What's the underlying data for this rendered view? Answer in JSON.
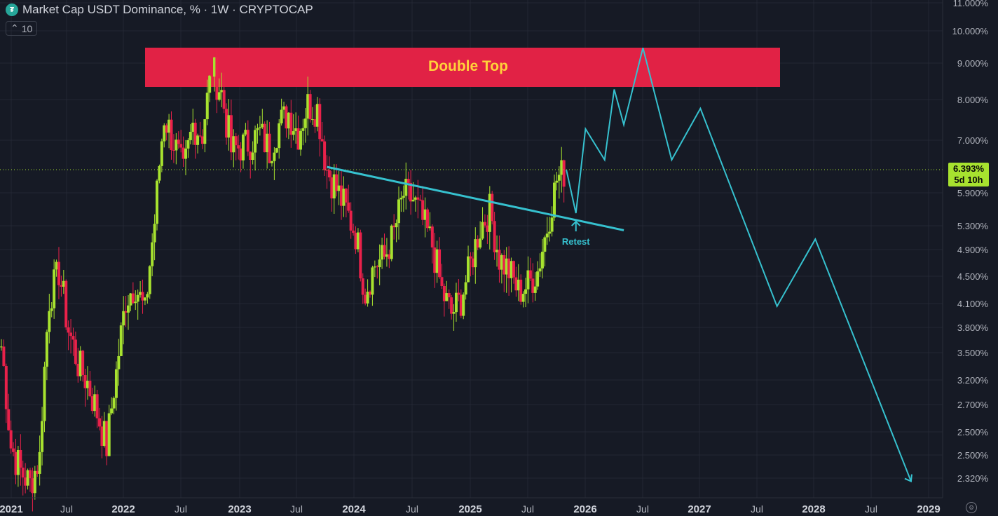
{
  "header": {
    "logo_icon": "ust-logo-icon",
    "title": "Market Cap USDT Dominance, % · 1W · CRYPTOCAP",
    "indicator_value": "10"
  },
  "price_tag": {
    "value": "6.393%",
    "countdown": "5d 10h"
  },
  "chart_data": {
    "type": "candlestick",
    "colors": {
      "up": "#a7e22f",
      "down": "#e9214a",
      "background": "#161a25",
      "grid": "#262a36",
      "drawing": "#36c1cf",
      "zone": "#ec2347"
    },
    "y_ticks": [
      "11.000%",
      "10.000%",
      "9.000%",
      "8.000%",
      "7.000%",
      "6.393%",
      "5.900%",
      "5.300%",
      "4.900%",
      "4.500%",
      "4.100%",
      "3.800%",
      "3.500%",
      "3.200%",
      "2.700%",
      "2.500%",
      "2.500%",
      "2.320%"
    ],
    "x_ticks": [
      "2021",
      "Jul",
      "2022",
      "Jul",
      "2023",
      "Jul",
      "2024",
      "Jul",
      "2025",
      "Jul",
      "2026",
      "Jul",
      "2027",
      "Jul",
      "2028",
      "Jul",
      "2029"
    ],
    "x_range": [
      "2021-01",
      "2029-02"
    ],
    "y_range": [
      2.2,
      11.2
    ],
    "close_series": [
      {
        "x": "2021-01",
        "y": 3.6
      },
      {
        "x": "2021-02",
        "y": 2.6
      },
      {
        "x": "2021-03",
        "y": 2.4
      },
      {
        "x": "2021-04",
        "y": 2.3
      },
      {
        "x": "2021-05",
        "y": 2.5
      },
      {
        "x": "2021-06",
        "y": 4.2
      },
      {
        "x": "2021-07",
        "y": 4.6
      },
      {
        "x": "2021-08",
        "y": 3.8
      },
      {
        "x": "2021-09",
        "y": 3.4
      },
      {
        "x": "2021-10",
        "y": 3.2
      },
      {
        "x": "2021-11",
        "y": 2.9
      },
      {
        "x": "2021-12",
        "y": 2.6
      },
      {
        "x": "2022-01",
        "y": 3.3
      },
      {
        "x": "2022-02",
        "y": 4.2
      },
      {
        "x": "2022-03",
        "y": 4.4
      },
      {
        "x": "2022-04",
        "y": 4.0
      },
      {
        "x": "2022-05",
        "y": 5.4
      },
      {
        "x": "2022-06",
        "y": 7.6
      },
      {
        "x": "2022-07",
        "y": 7.0
      },
      {
        "x": "2022-08",
        "y": 6.3
      },
      {
        "x": "2022-09",
        "y": 7.4
      },
      {
        "x": "2022-10",
        "y": 7.2
      },
      {
        "x": "2022-11",
        "y": 8.9
      },
      {
        "x": "2022-12",
        "y": 8.2
      },
      {
        "x": "2023-01",
        "y": 6.8
      },
      {
        "x": "2023-02",
        "y": 6.9
      },
      {
        "x": "2023-03",
        "y": 7.0
      },
      {
        "x": "2023-04",
        "y": 7.2
      },
      {
        "x": "2023-05",
        "y": 6.8
      },
      {
        "x": "2023-06",
        "y": 7.4
      },
      {
        "x": "2023-07",
        "y": 7.7
      },
      {
        "x": "2023-08",
        "y": 7.2
      },
      {
        "x": "2023-09",
        "y": 7.9
      },
      {
        "x": "2023-10",
        "y": 7.8
      },
      {
        "x": "2023-11",
        "y": 6.4
      },
      {
        "x": "2023-12",
        "y": 6.0
      },
      {
        "x": "2024-01",
        "y": 5.6
      },
      {
        "x": "2024-02",
        "y": 5.2
      },
      {
        "x": "2024-03",
        "y": 4.3
      },
      {
        "x": "2024-04",
        "y": 4.7
      },
      {
        "x": "2024-05",
        "y": 4.8
      },
      {
        "x": "2024-06",
        "y": 5.2
      },
      {
        "x": "2024-07",
        "y": 5.9
      },
      {
        "x": "2024-08",
        "y": 5.8
      },
      {
        "x": "2024-09",
        "y": 5.4
      },
      {
        "x": "2024-10",
        "y": 5.0
      },
      {
        "x": "2024-11",
        "y": 4.3
      },
      {
        "x": "2024-12",
        "y": 4.0
      },
      {
        "x": "2025-01",
        "y": 4.2
      },
      {
        "x": "2025-02",
        "y": 4.7
      },
      {
        "x": "2025-03",
        "y": 5.3
      },
      {
        "x": "2025-04",
        "y": 5.6
      },
      {
        "x": "2025-05",
        "y": 4.8
      },
      {
        "x": "2025-06",
        "y": 4.6
      },
      {
        "x": "2025-07",
        "y": 4.3
      },
      {
        "x": "2025-08",
        "y": 4.4
      },
      {
        "x": "2025-09",
        "y": 4.6
      },
      {
        "x": "2025-10",
        "y": 5.3
      },
      {
        "x": "2025-11",
        "y": 6.2
      },
      {
        "x": "2025-12",
        "y": 6.39
      }
    ],
    "annotations": {
      "zone_label": "Double Top",
      "retest_label": "Retest",
      "trendline": [
        {
          "x": "2023-11",
          "y": 6.45
        },
        {
          "x": "2026-06",
          "y": 5.25
        }
      ],
      "projection": [
        {
          "x": "2025-12",
          "y": 6.39
        },
        {
          "x": "2026-01",
          "y": 5.55
        },
        {
          "x": "2026-02",
          "y": 7.3
        },
        {
          "x": "2026-04",
          "y": 6.6
        },
        {
          "x": "2026-05",
          "y": 8.3
        },
        {
          "x": "2026-06",
          "y": 7.4
        },
        {
          "x": "2026-08",
          "y": 9.5
        },
        {
          "x": "2026-11",
          "y": 6.6
        },
        {
          "x": "2027-02",
          "y": 7.8
        },
        {
          "x": "2027-10",
          "y": 4.1
        },
        {
          "x": "2028-02",
          "y": 5.1
        },
        {
          "x": "2028-12",
          "y": 2.32
        }
      ]
    },
    "last_price": 6.393
  }
}
